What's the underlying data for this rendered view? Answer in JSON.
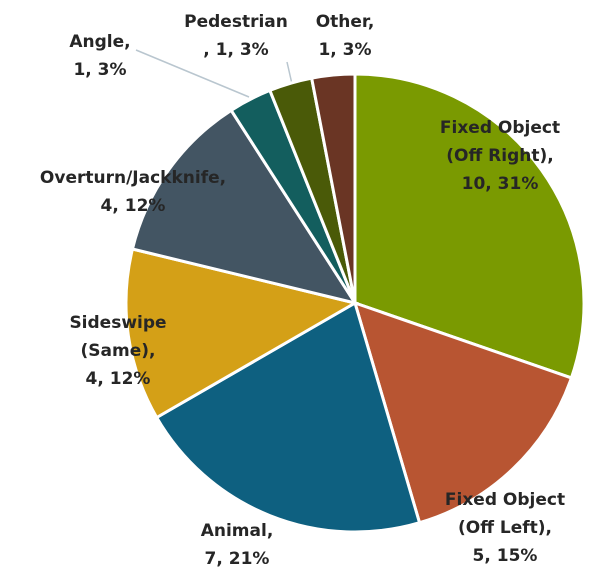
{
  "chart_data": {
    "type": "pie",
    "categories": [
      "Fixed Object (Off Right),",
      "Fixed Object (Off Left),",
      "Animal,",
      "Sideswipe (Same),",
      "Overturn/Jackknife,",
      "Angle,",
      "Pedestrian",
      "Other,"
    ],
    "values": [
      10,
      5,
      7,
      4,
      4,
      1,
      1,
      1
    ],
    "value_labels": [
      "10, 31%",
      "5, 15%",
      "7, 21%",
      "4, 12%",
      "4, 12%",
      "1, 3%",
      ", 1, 3%",
      "1, 3%"
    ],
    "colors": [
      "#7a9a01",
      "#b85532",
      "#0e6080",
      "#d4a017",
      "#435563",
      "#135e5e",
      "#4a5a08",
      "#6a3524"
    ]
  }
}
